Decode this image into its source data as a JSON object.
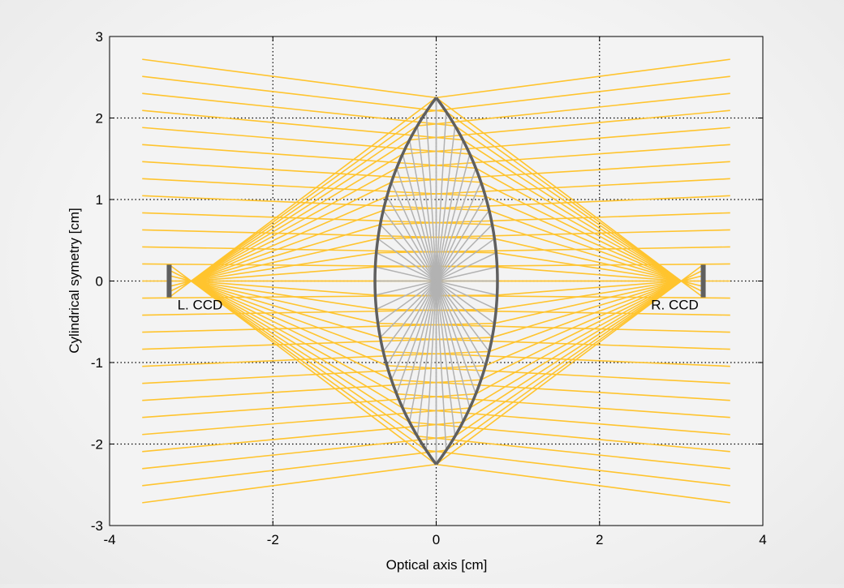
{
  "chart_data": {
    "type": "line",
    "title": "",
    "xlabel": "Optical axis [cm]",
    "ylabel": "Cylindrical symetry [cm]",
    "xlim": [
      -4,
      4
    ],
    "ylim": [
      -3,
      3
    ],
    "xticks": [
      -4,
      -2,
      0,
      2,
      4
    ],
    "yticks": [
      -3,
      -2,
      -1,
      0,
      1,
      2,
      3
    ],
    "grid": true,
    "lens": {
      "center_x": 0,
      "half_height": 2.25,
      "half_thickness": 0.75
    },
    "ccds": [
      {
        "label": "L. CCD",
        "x": -3.27,
        "focus_x": -3.0,
        "half_height": 0.2
      },
      {
        "label": "R. CCD",
        "x": 3.27,
        "focus_x": 3.0,
        "half_height": 0.2
      }
    ],
    "rays": {
      "count_per_side": 27,
      "focus_to_lens_distance": 3.0,
      "exit_far_x": 3.6,
      "exit_far_y": 2.72
    },
    "colors": {
      "ray": "#ffc42e",
      "lens_outline": "#5f5f5f",
      "internal_ray": "#b2b2b2",
      "ccd": "#5f5f5f",
      "plot_bg": "#f3f3f3",
      "frame": "#000000"
    }
  }
}
